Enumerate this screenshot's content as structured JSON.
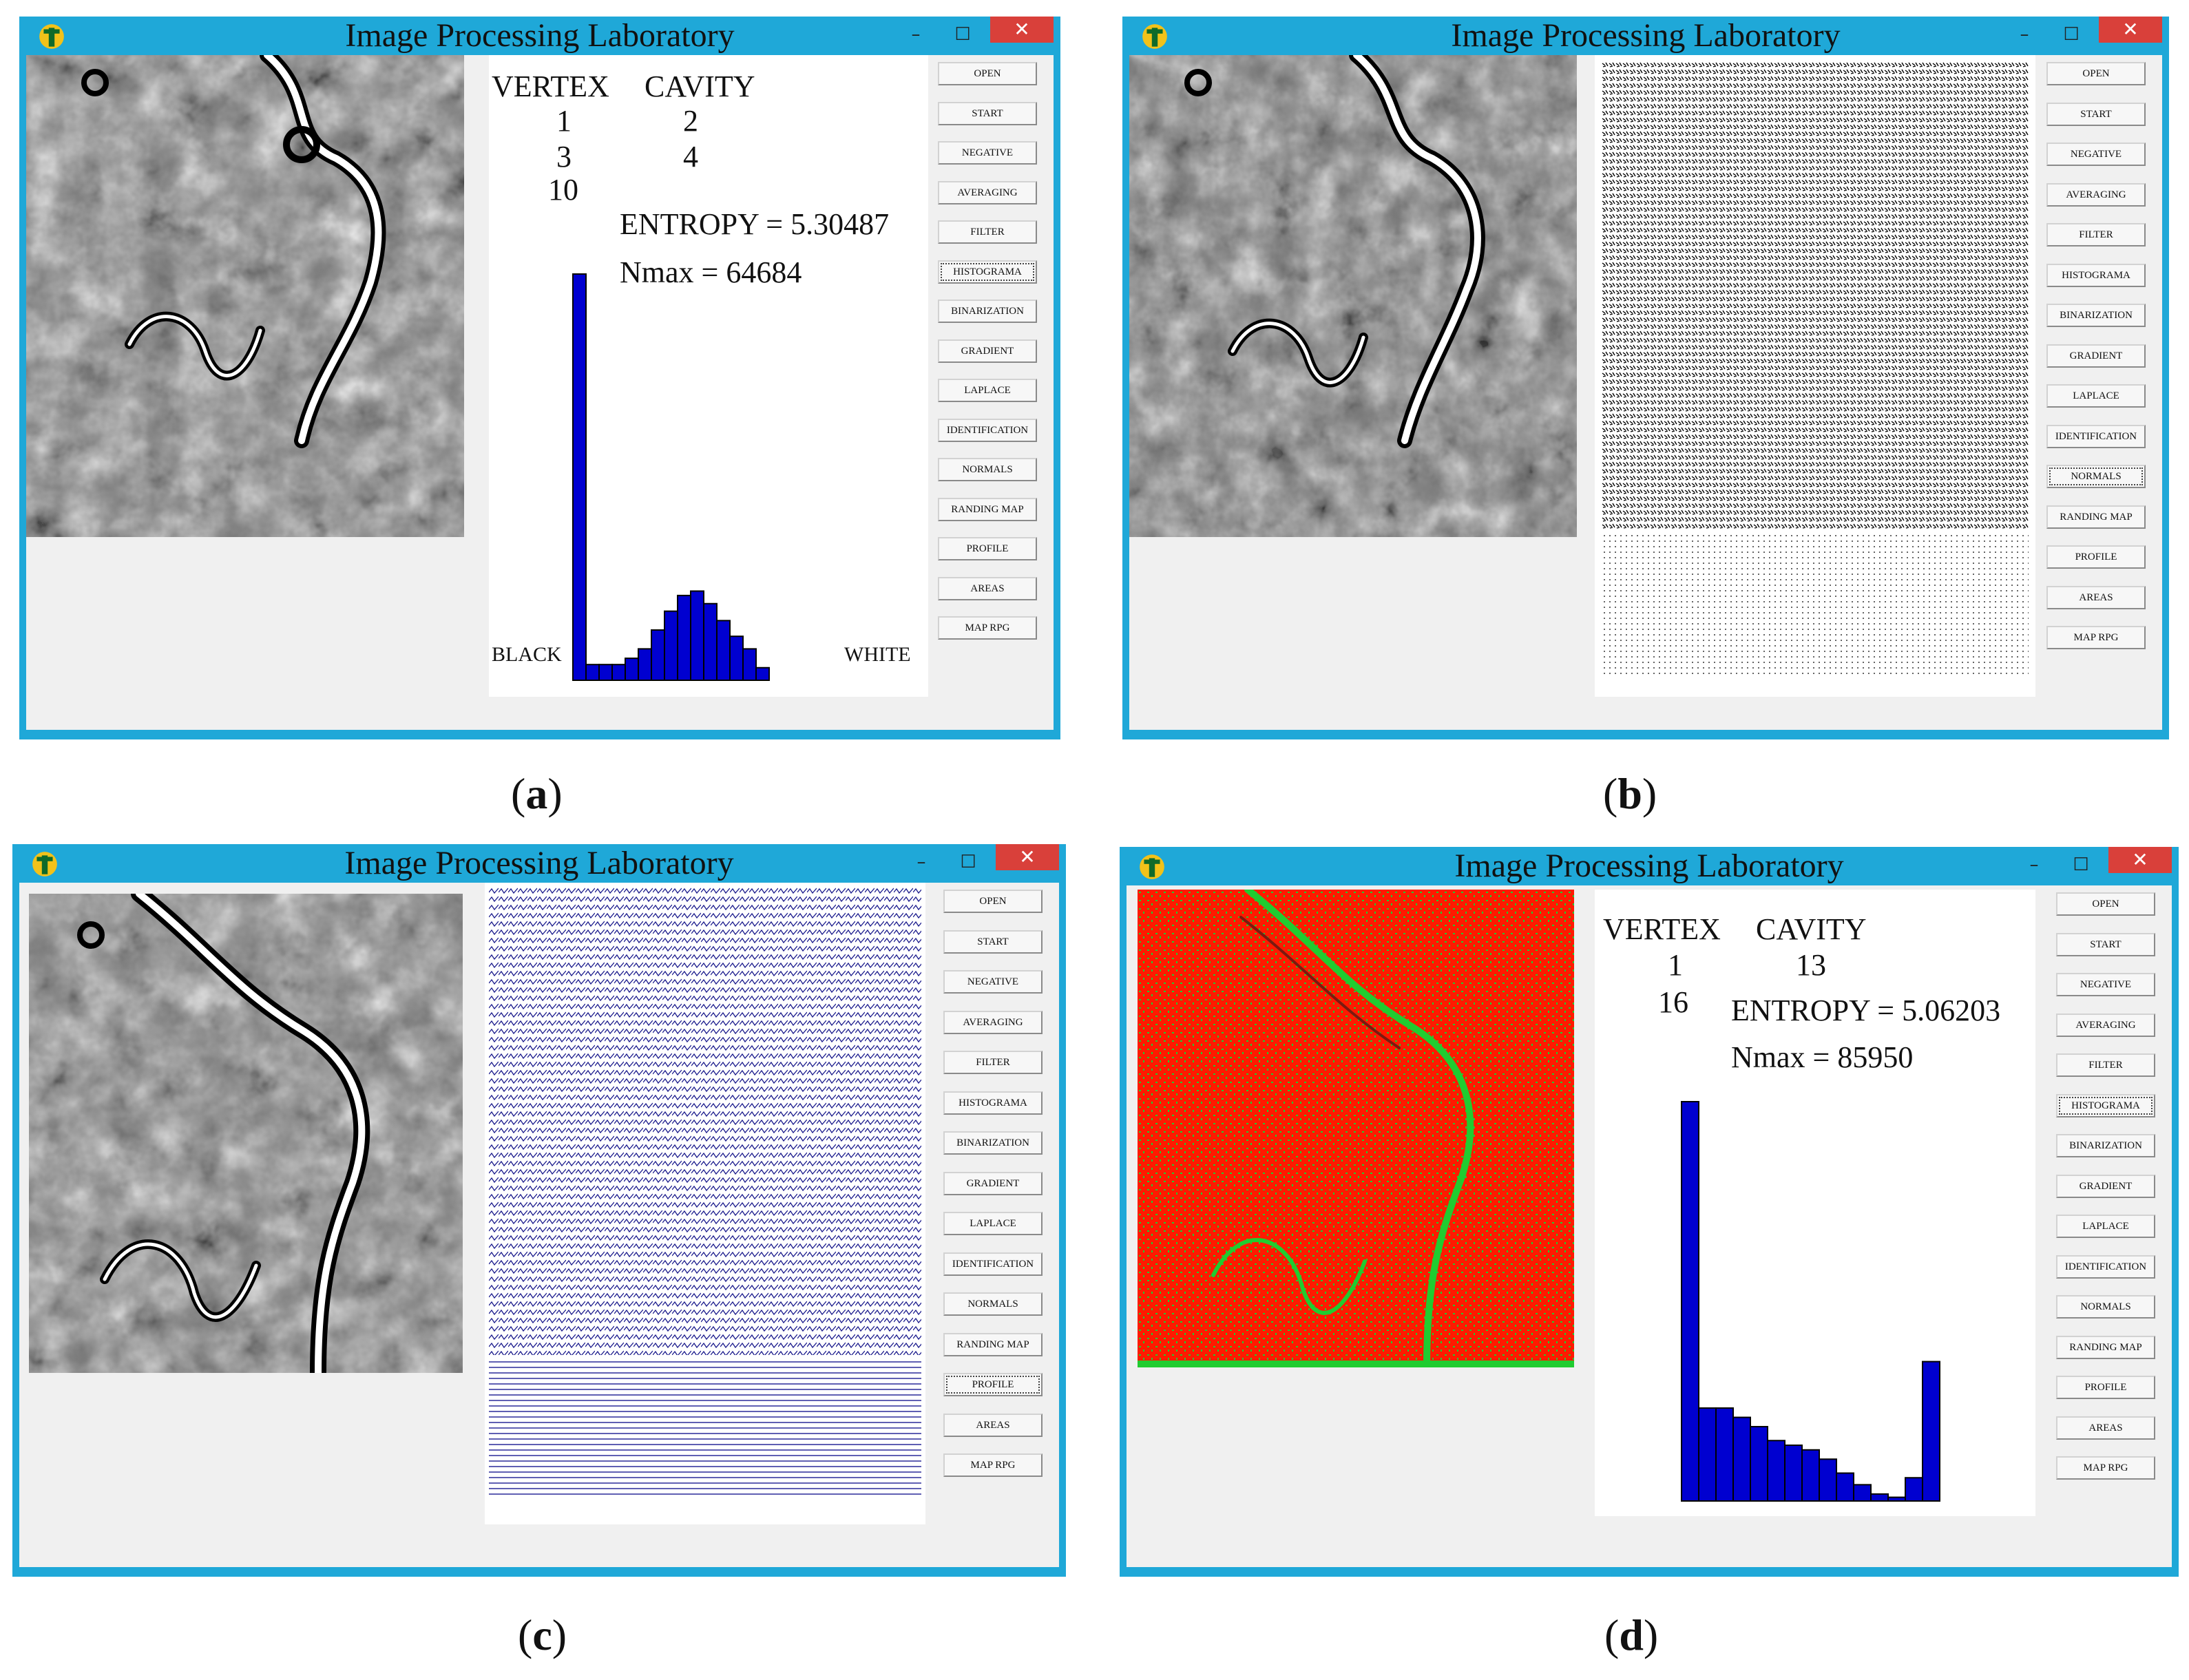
{
  "colors": {
    "window_frame": "#1fa8d8",
    "client": "#f0f0f0",
    "close": "#d9403a",
    "histogram_bar": "#0000d0",
    "vector_line": "#1a1a8c",
    "overlay_red": "#ff1a00",
    "overlay_green": "#20cc30"
  },
  "icons": {
    "app": "app-logo-icon",
    "minimize": "minimize-icon",
    "maximize": "maximize-icon",
    "close": "close-icon"
  },
  "window_controls": {
    "minimize": "–",
    "maximize": "☐",
    "close": "✕"
  },
  "buttons": [
    "OPEN",
    "START",
    "NEGATIVE",
    "AVERAGING",
    "FILTER",
    "HISTOGRAMA",
    "BINARIZATION",
    "GRADIENT",
    "LAPLACE",
    "IDENTIFICATION",
    "NORMALS",
    "RANDING MAP",
    "PROFILE",
    "AREAS",
    "MAP RPG"
  ],
  "panels": {
    "a": {
      "title": "Image Processing Laboratory",
      "caption_letter": "a",
      "active_button": "HISTOGRAMA",
      "vertex_label": "VERTEX",
      "cavity_label": "CAVITY",
      "vertex_values": [
        "1",
        "3",
        "10"
      ],
      "cavity_values": [
        "2",
        "4"
      ],
      "entropy_text": "ENTROPY = 5.30487",
      "nmax_text": "Nmax = 64684",
      "black_label": "BLACK",
      "white_label": "WHITE",
      "histogram": [
        64684,
        2500,
        2500,
        2500,
        3500,
        5000,
        8000,
        11000,
        13500,
        14200,
        12200,
        9500,
        7000,
        5000,
        2000
      ],
      "nmax": 64684
    },
    "b": {
      "title": "Image Processing Laboratory",
      "caption_letter": "b",
      "active_button": "NORMALS"
    },
    "c": {
      "title": "Image Processing Laboratory",
      "caption_letter": "c",
      "active_button": "PROFILE"
    },
    "d": {
      "title": "Image Processing Laboratory",
      "caption_letter": "d",
      "active_button": "HISTOGRAMA",
      "vertex_label": "VERTEX",
      "cavity_label": "CAVITY",
      "vertex_values": [
        "1",
        "16"
      ],
      "cavity_values": [
        "13"
      ],
      "entropy_text": "ENTROPY = 5.06203",
      "nmax_text": "Nmax = 85950",
      "histogram": [
        85950,
        20000,
        20000,
        18000,
        16000,
        13000,
        12000,
        11000,
        9000,
        6000,
        3500,
        1500,
        800,
        5000,
        30000
      ],
      "nmax": 85950
    }
  }
}
